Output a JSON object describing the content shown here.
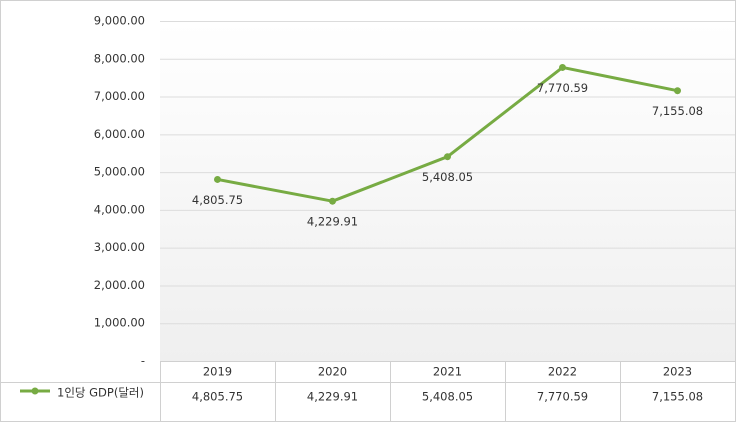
{
  "chart_data": {
    "type": "line",
    "categories": [
      "2019",
      "2020",
      "2021",
      "2022",
      "2023"
    ],
    "series": [
      {
        "name": "1인당 GDP(달러)",
        "color": "#77ab43",
        "values": [
          4805.75,
          4229.91,
          5408.05,
          7770.59,
          7155.08
        ],
        "value_labels": [
          "4,805.75",
          "4,229.91",
          "5,408.05",
          "7,770.59",
          "7,155.08"
        ]
      }
    ],
    "ylim": [
      0,
      9000
    ],
    "yticks": [
      {
        "value": 0,
        "label": "-"
      },
      {
        "value": 1000,
        "label": "1,000.00"
      },
      {
        "value": 2000,
        "label": "2,000.00"
      },
      {
        "value": 3000,
        "label": "3,000.00"
      },
      {
        "value": 4000,
        "label": "4,000.00"
      },
      {
        "value": 5000,
        "label": "5,000.00"
      },
      {
        "value": 6000,
        "label": "6,000.00"
      },
      {
        "value": 7000,
        "label": "7,000.00"
      },
      {
        "value": 8000,
        "label": "8,000.00"
      },
      {
        "value": 9000,
        "label": "9,000.00"
      }
    ],
    "grid": true
  }
}
